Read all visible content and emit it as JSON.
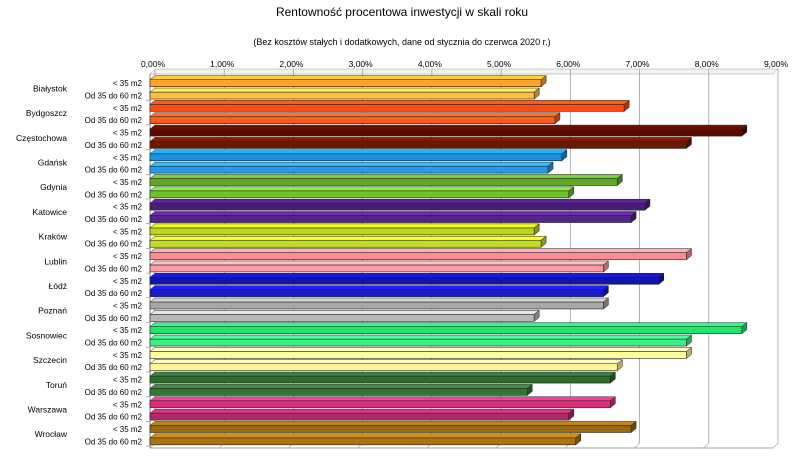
{
  "chart_data": {
    "type": "bar",
    "orientation": "horizontal",
    "title": "Rentowność procentowa inwestycji w skali roku",
    "subtitle": "(Bez kosztów stałych i dodatkowych, dane od stycznia do czerwca 2020 r.)",
    "x_ticks": [
      "0,00%",
      "1,00%",
      "2,00%",
      "3,00%",
      "4,00%",
      "5,00%",
      "6,00%",
      "7,00%",
      "8,00%",
      "9,00%"
    ],
    "xlim": [
      0,
      9
    ],
    "x_unit": "%",
    "grid": true,
    "subcategories": [
      "< 35 m2",
      "Od 35 do 60 m2"
    ],
    "groups": [
      {
        "city": "Białystok",
        "values": [
          5.65,
          5.55
        ],
        "colors": [
          "#FFA42A",
          "#FFBF47"
        ]
      },
      {
        "city": "Bydgoszcz",
        "values": [
          6.85,
          5.85
        ],
        "colors": [
          "#FF4A12",
          "#FF5A20"
        ]
      },
      {
        "city": "Częstochowa",
        "values": [
          8.55,
          7.75
        ],
        "colors": [
          "#5A0A00",
          "#6A1800"
        ]
      },
      {
        "city": "Gdańsk",
        "values": [
          5.95,
          5.75
        ],
        "colors": [
          "#1D90E0",
          "#2A9AE8"
        ]
      },
      {
        "city": "Gdynia",
        "values": [
          6.75,
          6.05
        ],
        "colors": [
          "#5FA82A",
          "#70C030"
        ]
      },
      {
        "city": "Katowice",
        "values": [
          7.15,
          6.95
        ],
        "colors": [
          "#4A1E78",
          "#552488"
        ]
      },
      {
        "city": "Kraków",
        "values": [
          5.55,
          5.65
        ],
        "colors": [
          "#BFD51A",
          "#C8DC25"
        ]
      },
      {
        "city": "Lublin",
        "values": [
          7.75,
          6.55
        ],
        "colors": [
          "#FF8A92",
          "#FF9AA0"
        ]
      },
      {
        "city": "Łódź",
        "values": [
          7.35,
          6.55
        ],
        "colors": [
          "#1414B0",
          "#1A1AC8"
        ]
      },
      {
        "city": "Poznań",
        "values": [
          6.55,
          5.55
        ],
        "colors": [
          "#A8A8A8",
          "#B8B8B8"
        ]
      },
      {
        "city": "Sosnowiec",
        "values": [
          8.55,
          7.75
        ],
        "colors": [
          "#1EE86A",
          "#3AF080"
        ]
      },
      {
        "city": "Szczecin",
        "values": [
          7.75,
          6.75
        ],
        "colors": [
          "#FFFF9A",
          "#FFF59A"
        ]
      },
      {
        "city": "Toruń",
        "values": [
          6.65,
          5.45
        ],
        "colors": [
          "#2E6A2E",
          "#357535"
        ]
      },
      {
        "city": "Warszawa",
        "values": [
          6.65,
          6.05
        ],
        "colors": [
          "#DD2E7A",
          "#B02A6A"
        ]
      },
      {
        "city": "Wrocław",
        "values": [
          6.95,
          6.15
        ],
        "colors": [
          "#9A6A10",
          "#A87414"
        ]
      }
    ]
  }
}
